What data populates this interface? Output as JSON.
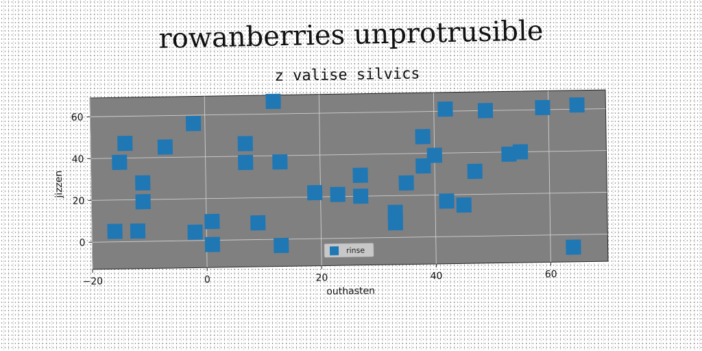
{
  "figure_title": "rowanberries unprotrusible",
  "chart_data": {
    "type": "scatter",
    "title": "z valise silvics",
    "xlabel": "outhasten",
    "ylabel": "jizzen",
    "xlim": [
      -20,
      70
    ],
    "ylim": [
      -13,
      69
    ],
    "xticks": [
      -20,
      0,
      20,
      40,
      60
    ],
    "yticks": [
      0,
      20,
      40,
      60
    ],
    "grid": true,
    "legend_position": "bottom-center",
    "background_color": "#808080",
    "series": [
      {
        "name": "rinse",
        "color": "#1f77b4",
        "marker": "square",
        "points": [
          [
            -16,
            5
          ],
          [
            -12,
            5
          ],
          [
            -15,
            38
          ],
          [
            -14,
            47
          ],
          [
            -11,
            28
          ],
          [
            -11,
            19
          ],
          [
            -7,
            45
          ],
          [
            -2,
            56
          ],
          [
            -2,
            4
          ],
          [
            1,
            9
          ],
          [
            1,
            -2
          ],
          [
            7,
            46
          ],
          [
            7,
            37
          ],
          [
            9,
            8
          ],
          [
            12,
            66
          ],
          [
            13,
            37
          ],
          [
            13,
            -3
          ],
          [
            19,
            22
          ],
          [
            23,
            21
          ],
          [
            27,
            20
          ],
          [
            27,
            30
          ],
          [
            33,
            12
          ],
          [
            33,
            7
          ],
          [
            35,
            26
          ],
          [
            38,
            48
          ],
          [
            38,
            34
          ],
          [
            40,
            39
          ],
          [
            42,
            61
          ],
          [
            42,
            17
          ],
          [
            45,
            15
          ],
          [
            47,
            31
          ],
          [
            49,
            60
          ],
          [
            53,
            39
          ],
          [
            55,
            40
          ],
          [
            59,
            61
          ],
          [
            65,
            62
          ],
          [
            64,
            -6
          ]
        ]
      }
    ]
  }
}
